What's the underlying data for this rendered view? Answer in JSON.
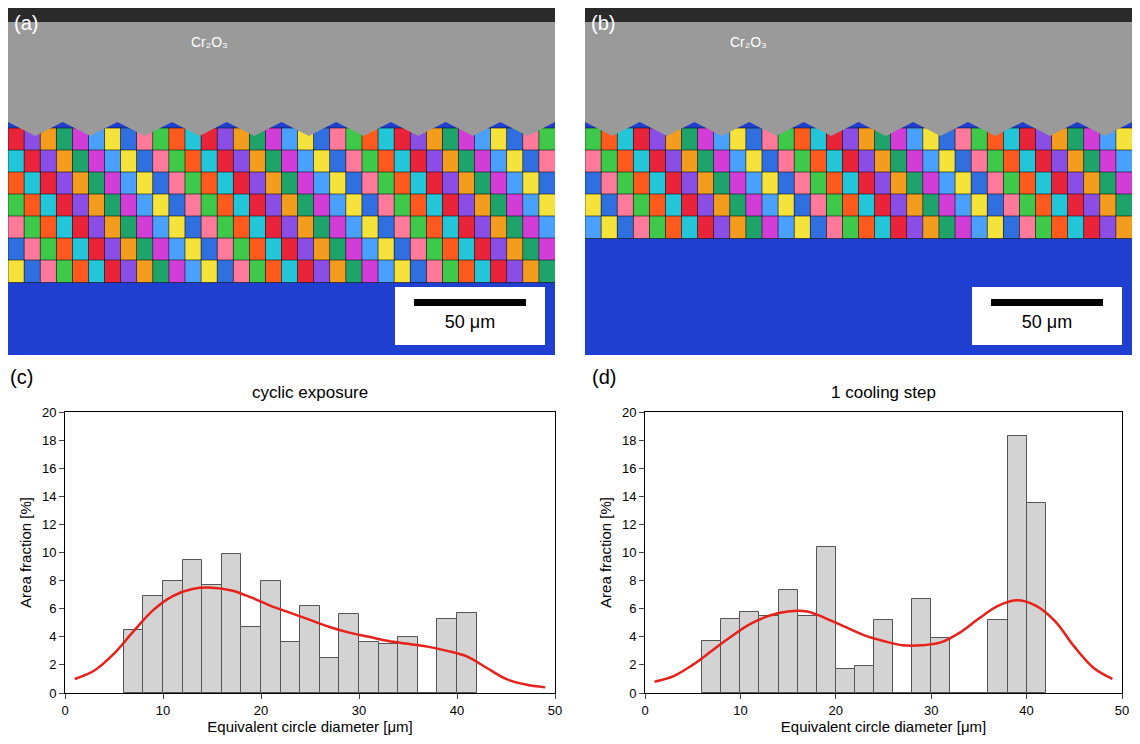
{
  "panels": [
    {
      "letter": "(a)",
      "label": "Cr₂O₃",
      "scale_bar": "50 μm"
    },
    {
      "letter": "(b)",
      "label": "Cr₂O₃",
      "scale_bar": "50 μm"
    }
  ],
  "chart_data": [
    {
      "type": "histogram",
      "panel": "(c)",
      "title": "cyclic exposure",
      "x_label": "Equivalent circle diameter [μm]",
      "y_label": "Area fraction [%]",
      "bins": [
        6,
        8,
        10,
        12,
        14,
        16,
        18,
        20,
        22,
        24,
        26,
        28,
        30,
        32,
        34,
        36,
        38,
        40,
        42
      ],
      "counts": [
        4.5,
        6.9,
        8.0,
        9.5,
        7.7,
        9.9,
        4.7,
        8.0,
        3.6,
        6.2,
        2.5,
        5.6,
        3.6,
        3.5,
        4.0,
        0,
        5.3,
        5.7
      ],
      "color": "#d3d3d3",
      "curve": {
        "x": [
          1,
          3,
          5,
          7,
          9,
          11,
          13,
          15,
          17,
          19,
          21,
          23,
          25,
          27,
          29,
          31,
          33,
          35,
          37,
          39,
          41,
          43,
          45,
          47,
          49
        ],
        "values": [
          1.0,
          1.6,
          2.8,
          4.4,
          5.9,
          6.9,
          7.4,
          7.5,
          7.3,
          6.8,
          6.2,
          5.7,
          5.2,
          4.7,
          4.3,
          4.0,
          3.7,
          3.5,
          3.3,
          3.0,
          2.6,
          1.8,
          1.0,
          0.6,
          0.4
        ],
        "color": "#e8201a"
      },
      "xlim": [
        0,
        50
      ],
      "xticks": [
        0,
        10,
        20,
        30,
        40,
        50
      ],
      "ylim": [
        0,
        20
      ],
      "yticks": [
        0,
        2,
        4,
        6,
        8,
        10,
        12,
        14,
        16,
        18,
        20
      ]
    },
    {
      "type": "histogram",
      "panel": "(d)",
      "title": "1 cooling step",
      "x_label": "Equivalent circle diameter [μm]",
      "y_label": "Area fraction [%]",
      "bins": [
        6,
        8,
        10,
        12,
        14,
        16,
        18,
        20,
        22,
        24,
        26,
        28,
        30,
        32,
        34,
        36,
        38,
        40,
        42
      ],
      "counts": [
        3.7,
        5.3,
        5.8,
        5.5,
        7.3,
        5.5,
        10.4,
        1.7,
        1.9,
        5.2,
        0,
        6.7,
        3.9,
        0,
        0,
        5.2,
        18.3,
        13.5
      ],
      "color": "#d3d3d3",
      "curve": {
        "x": [
          1,
          3,
          5,
          7,
          9,
          11,
          13,
          15,
          17,
          19,
          21,
          23,
          25,
          27,
          29,
          31,
          33,
          35,
          37,
          39,
          41,
          43,
          45,
          47,
          49
        ],
        "values": [
          0.8,
          1.2,
          2.0,
          3.0,
          4.0,
          4.9,
          5.5,
          5.8,
          5.8,
          5.3,
          4.7,
          4.1,
          3.7,
          3.4,
          3.4,
          3.6,
          4.3,
          5.3,
          6.2,
          6.6,
          6.2,
          5.1,
          3.3,
          1.8,
          1.0
        ],
        "color": "#e8201a"
      },
      "xlim": [
        0,
        50
      ],
      "xticks": [
        0,
        10,
        20,
        30,
        40,
        50
      ],
      "ylim": [
        0,
        20
      ],
      "yticks": [
        0,
        2,
        4,
        6,
        8,
        10,
        12,
        14,
        16,
        18,
        20
      ]
    }
  ]
}
